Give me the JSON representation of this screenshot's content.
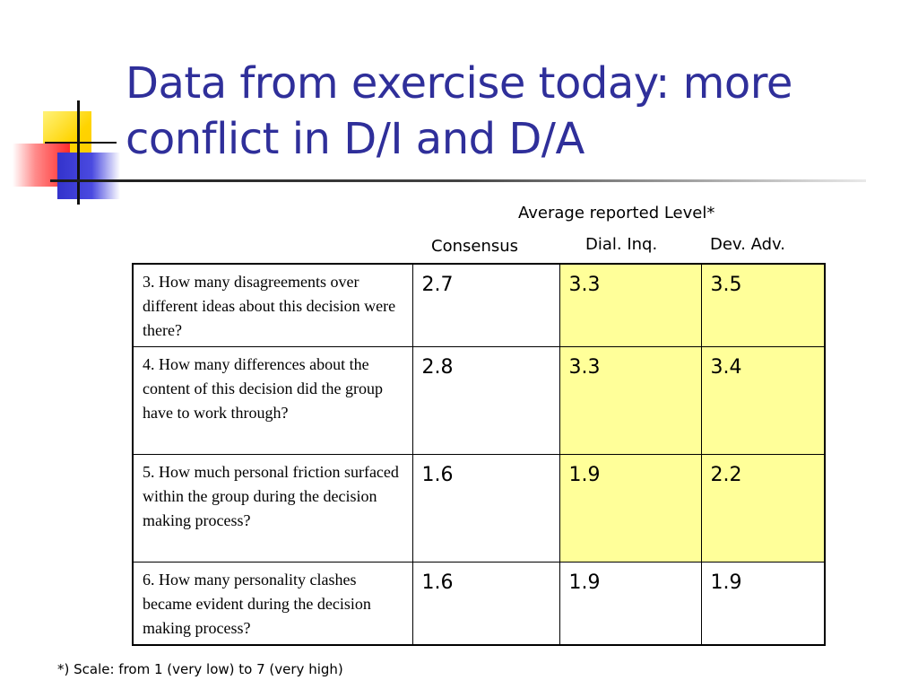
{
  "slide": {
    "title": "Data from exercise today: more conflict in D/I and D/A",
    "group_header": "Average reported Level*",
    "columns": [
      "Consensus",
      "Dial. Inq.",
      "Dev. Adv."
    ],
    "rows": [
      {
        "question": "3. How many disagreements over different ideas about this decision were there?",
        "values": [
          "2.7",
          "3.3",
          "3.5"
        ]
      },
      {
        "question": "4. How many differences about the content of this decision did the group have to work through?",
        "values": [
          "2.8",
          "3.3",
          "3.4"
        ]
      },
      {
        "question": "5. How much personal friction surfaced within the group during the decision making process?",
        "values": [
          "1.6",
          "1.9",
          "2.2"
        ]
      },
      {
        "question": "6. How many personality clashes became evident during the decision making process?",
        "values": [
          "1.6",
          "1.9",
          "1.9"
        ]
      }
    ],
    "highlighted_rows_columns": "rows 1-3, columns Dial. Inq. and Dev. Adv.",
    "footnote": "*) Scale: from 1 (very low) to 7 (very high)"
  },
  "colors": {
    "title": "#2f2f9a",
    "highlight": "#ffff99",
    "logo_yellow": "#ffd400",
    "logo_red": "#ff2b2b",
    "logo_blue": "#3333cc"
  }
}
